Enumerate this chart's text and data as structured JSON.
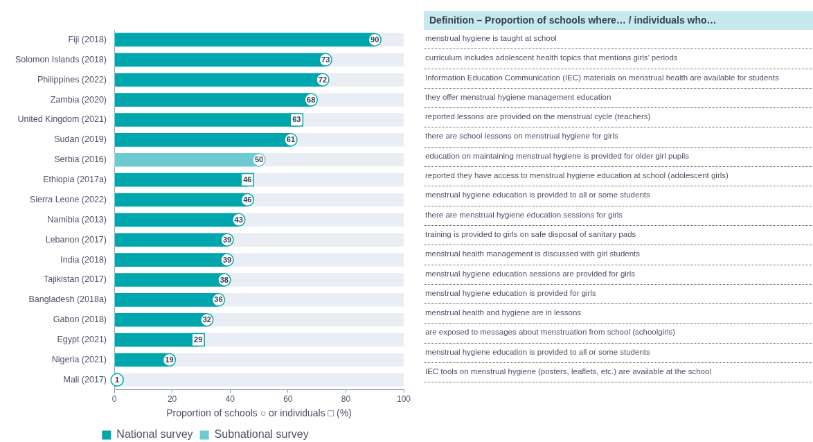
{
  "chart_data": [
    {
      "type": "bar",
      "orientation": "horizontal",
      "stacked": true,
      "categories": [
        "Fiji (2018)",
        "Solomon Islands (2018)",
        "Philippines (2022)",
        "Zambia (2020)",
        "United Kingdom (2021)",
        "Sudan (2019)",
        "Serbia (2016)",
        "Ethiopia (2017a)",
        "Sierra Leone (2022)",
        "Namibia (2013)",
        "Lebanon (2017)",
        "India (2018)",
        "Tajikistan (2017)",
        "Bangladesh (2018a)",
        "Gabon (2018)",
        "Egypt (2021)",
        "Nigeria (2021)",
        "Mali (2017)"
      ],
      "series": [
        {
          "name": "National survey",
          "color": "#00a6ad",
          "marker": "circle",
          "values": [
            90,
            73,
            72,
            68,
            null,
            61,
            null,
            null,
            46,
            43,
            39,
            39,
            38,
            36,
            32,
            null,
            19,
            1
          ]
        },
        {
          "color": "#00a6ad",
          "marker": "square",
          "values": [
            null,
            null,
            null,
            null,
            63,
            null,
            null,
            46,
            null,
            null,
            null,
            null,
            null,
            null,
            null,
            29,
            null,
            null
          ]
        },
        {
          "name": "Subnational survey",
          "color": "#6ecad1",
          "marker": "circle",
          "values": [
            null,
            null,
            null,
            null,
            null,
            null,
            50,
            null,
            null,
            null,
            null,
            null,
            null,
            null,
            null,
            null,
            null,
            null
          ]
        }
      ],
      "xlim": [
        0,
        100
      ],
      "xticks": [
        0,
        20,
        40,
        60,
        80,
        100
      ],
      "xlabel": "Proportion of schools ○ or individuals □ (%)",
      "legend": "bottom",
      "data_labels": true
    },
    {
      "type": "other",
      "title": "Definition – Proportion of schools where… / individuals who…",
      "annotations": [
        "menstrual hygiene is taught at school",
        "curriculum includes adolescent health topics that mentions girls’ periods",
        "Information Education Communication (IEC) materials on menstrual health are available for students",
        "they offer menstrual hygiene management education",
        "reported lessons are provided on the menstrual cycle (teachers)",
        "there are school lessons on menstrual hygiene for girls",
        "education on maintaining menstrual hygiene is provided for older girl pupils",
        "reported they have access to menstrual hygiene education at school (adolescent girls)",
        "menstrual hygiene education is provided to all or some students",
        "there are menstrual hygiene education sessions for girls",
        "training is provided to girls on safe disposal of sanitary pads",
        "menstrual health management is discussed with girl students",
        "menstrual hygiene education sessions are provided for girls",
        "menstrual hygiene education is provided for girls",
        "menstrual health and hygiene are in lessons",
        "are exposed to messages about menstruation from school (schoolgirls)",
        "menstrual hygiene education is provided to all or some students",
        "IEC tools on menstrual hygiene (posters, leaflets, etc.) are available at the school"
      ]
    }
  ]
}
